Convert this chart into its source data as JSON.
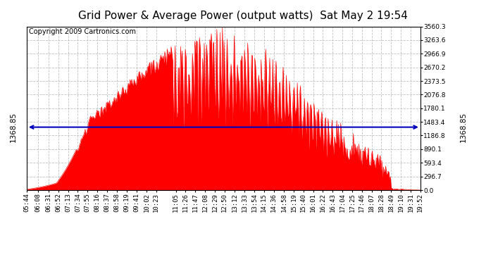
{
  "title": "Grid Power & Average Power (output watts)  Sat May 2 19:54",
  "copyright": "Copyright 2009 Cartronics.com",
  "avg_power": 1368.85,
  "y_max": 3560.3,
  "y_min": 0.0,
  "ytick_labels": [
    "0.0",
    "296.7",
    "593.4",
    "890.1",
    "1186.8",
    "1483.4",
    "1780.1",
    "2076.8",
    "2373.5",
    "2670.2",
    "2966.9",
    "3263.6",
    "3560.3"
  ],
  "ytick_values": [
    0.0,
    296.7,
    593.4,
    890.1,
    1186.8,
    1483.4,
    1780.1,
    2076.8,
    2373.5,
    2670.2,
    2966.9,
    3263.6,
    3560.3
  ],
  "xtick_labels": [
    "05:44",
    "06:08",
    "06:31",
    "06:52",
    "07:13",
    "07:34",
    "07:55",
    "08:16",
    "08:37",
    "08:58",
    "09:19",
    "09:41",
    "10:02",
    "10:23",
    "11:05",
    "11:26",
    "11:47",
    "12:08",
    "12:29",
    "12:50",
    "13:12",
    "13:33",
    "13:54",
    "14:15",
    "14:36",
    "14:58",
    "15:19",
    "15:40",
    "16:01",
    "16:22",
    "16:43",
    "17:04",
    "17:25",
    "17:46",
    "18:07",
    "18:28",
    "18:49",
    "19:10",
    "19:31",
    "19:52"
  ],
  "fill_color": "#FF0000",
  "line_color": "#FF0000",
  "avg_line_color": "#0000BB",
  "background_color": "#FFFFFF",
  "plot_bg_color": "#FFFFFF",
  "grid_color": "#BBBBBB",
  "title_fontsize": 11,
  "copyright_fontsize": 7,
  "avg_label_fontsize": 7.5,
  "tick_fontsize": 6.5
}
